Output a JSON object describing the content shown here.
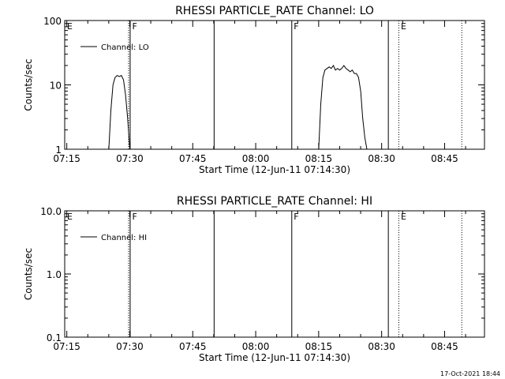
{
  "footer": "17-Oct-2021 18:44",
  "chart_data": [
    {
      "type": "line",
      "title": "RHESSI PARTICLE_RATE Channel: LO",
      "xlabel": "Start Time (12-Jun-11 07:14:30)",
      "ylabel": "Counts/sec",
      "yscale": "log",
      "xlim": [
        "07:14:30",
        "08:54:30"
      ],
      "ylim": [
        1,
        100
      ],
      "x_ticks": [
        "07:15",
        "07:30",
        "07:45",
        "08:00",
        "08:15",
        "08:30",
        "08:45"
      ],
      "y_ticks": [
        "1",
        "10",
        "100"
      ],
      "legend": {
        "position": "top-left",
        "label": "Channel: LO"
      },
      "event_markers": [
        {
          "time": "07:14:30",
          "label": "E",
          "style": "none"
        },
        {
          "time": "07:30:00",
          "label": "F",
          "style": "solid+dotted"
        },
        {
          "time": "07:50:00",
          "label": "",
          "style": "solid"
        },
        {
          "time": "08:08:30",
          "label": "F",
          "style": "solid"
        },
        {
          "time": "08:31:30",
          "label": "",
          "style": "solid"
        },
        {
          "time": "08:34:00",
          "label": "E",
          "style": "dotted"
        },
        {
          "time": "08:49:00",
          "label": "",
          "style": "dotted"
        }
      ],
      "series": [
        {
          "points": [
            [
              "07:25:00",
              1
            ],
            [
              "07:25:30",
              4
            ],
            [
              "07:26:00",
              10
            ],
            [
              "07:26:30",
              13
            ],
            [
              "07:27:00",
              14
            ],
            [
              "07:27:30",
              13.5
            ],
            [
              "07:28:00",
              14
            ],
            [
              "07:28:30",
              12
            ],
            [
              "07:29:00",
              7
            ],
            [
              "07:29:30",
              3
            ],
            [
              "07:30:00",
              1
            ]
          ]
        },
        {
          "points": [
            [
              "08:15:00",
              1
            ],
            [
              "08:15:30",
              5
            ],
            [
              "08:16:00",
              13
            ],
            [
              "08:16:30",
              17
            ],
            [
              "08:17:00",
              18
            ],
            [
              "08:17:30",
              19
            ],
            [
              "08:18:00",
              18
            ],
            [
              "08:18:30",
              20
            ],
            [
              "08:19:00",
              17
            ],
            [
              "08:19:30",
              18
            ],
            [
              "08:20:00",
              17
            ],
            [
              "08:20:30",
              18
            ],
            [
              "08:21:00",
              20
            ],
            [
              "08:21:30",
              18
            ],
            [
              "08:22:00",
              17
            ],
            [
              "08:22:30",
              16
            ],
            [
              "08:23:00",
              17
            ],
            [
              "08:23:30",
              15
            ],
            [
              "08:24:00",
              15
            ],
            [
              "08:24:30",
              13
            ],
            [
              "08:25:00",
              8
            ],
            [
              "08:25:30",
              3
            ],
            [
              "08:26:00",
              1.5
            ],
            [
              "08:26:30",
              1
            ]
          ]
        }
      ]
    },
    {
      "type": "line",
      "title": "RHESSI PARTICLE_RATE Channel: HI",
      "xlabel": "Start Time (12-Jun-11 07:14:30)",
      "ylabel": "Counts/sec",
      "yscale": "log",
      "xlim": [
        "07:14:30",
        "08:54:30"
      ],
      "ylim": [
        0.1,
        10
      ],
      "x_ticks": [
        "07:15",
        "07:30",
        "07:45",
        "08:00",
        "08:15",
        "08:30",
        "08:45"
      ],
      "y_ticks": [
        "0.1",
        "1.0",
        "10.0"
      ],
      "legend": {
        "position": "top-left",
        "label": "Channel: HI"
      },
      "event_markers": [
        {
          "time": "07:14:30",
          "label": "E",
          "style": "none"
        },
        {
          "time": "07:30:00",
          "label": "F",
          "style": "solid+dotted"
        },
        {
          "time": "07:50:00",
          "label": "",
          "style": "solid"
        },
        {
          "time": "08:08:30",
          "label": "F",
          "style": "solid"
        },
        {
          "time": "08:31:30",
          "label": "",
          "style": "solid"
        },
        {
          "time": "08:34:00",
          "label": "E",
          "style": "dotted"
        },
        {
          "time": "08:49:00",
          "label": "",
          "style": "dotted"
        }
      ],
      "series": []
    }
  ]
}
